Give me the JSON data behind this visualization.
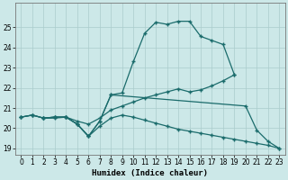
{
  "xlabel": "Humidex (Indice chaleur)",
  "bg_color": "#cce8e8",
  "grid_color": "#aacccc",
  "line_color": "#1a6b6b",
  "xlim": [
    -0.5,
    23.5
  ],
  "ylim": [
    18.7,
    26.2
  ],
  "xticks": [
    0,
    1,
    2,
    3,
    4,
    5,
    6,
    7,
    8,
    9,
    10,
    11,
    12,
    13,
    14,
    15,
    16,
    17,
    18,
    19,
    20,
    21,
    22,
    23
  ],
  "yticks": [
    19,
    20,
    21,
    22,
    23,
    24,
    25
  ],
  "line1_x": [
    0,
    1,
    2,
    3,
    4,
    5,
    6,
    7,
    8,
    9,
    10,
    11,
    12,
    13,
    14,
    15,
    16,
    17,
    18,
    19
  ],
  "line1_y": [
    20.55,
    20.65,
    20.5,
    20.55,
    20.55,
    20.2,
    19.6,
    20.35,
    21.65,
    21.75,
    23.3,
    24.7,
    25.25,
    25.15,
    25.3,
    25.3,
    24.55,
    24.35,
    24.15,
    22.65
  ],
  "line2_x": [
    0,
    1,
    2,
    3,
    4,
    5,
    6,
    7,
    8,
    20,
    21,
    22,
    23
  ],
  "line2_y": [
    20.55,
    20.65,
    20.5,
    20.55,
    20.55,
    20.2,
    19.6,
    20.35,
    21.65,
    21.1,
    19.9,
    19.35,
    19.0
  ],
  "line3_x": [
    0,
    1,
    2,
    3,
    4,
    5,
    6,
    7,
    8,
    9,
    10,
    11,
    12,
    13,
    14,
    15,
    16,
    17,
    18,
    19
  ],
  "line3_y": [
    20.55,
    20.65,
    20.5,
    20.5,
    20.55,
    20.35,
    20.2,
    20.5,
    20.9,
    21.1,
    21.3,
    21.5,
    21.65,
    21.8,
    21.95,
    21.8,
    21.9,
    22.1,
    22.35,
    22.65
  ],
  "line4_x": [
    2,
    3,
    4,
    5,
    6,
    7,
    8,
    9,
    10,
    11,
    12,
    13,
    14,
    15,
    16,
    17,
    18,
    19,
    20,
    21,
    22,
    23
  ],
  "line4_y": [
    20.5,
    20.55,
    20.55,
    20.2,
    19.6,
    20.1,
    20.5,
    20.65,
    20.55,
    20.4,
    20.25,
    20.1,
    19.95,
    19.85,
    19.75,
    19.65,
    19.55,
    19.45,
    19.35,
    19.25,
    19.15,
    19.0
  ]
}
